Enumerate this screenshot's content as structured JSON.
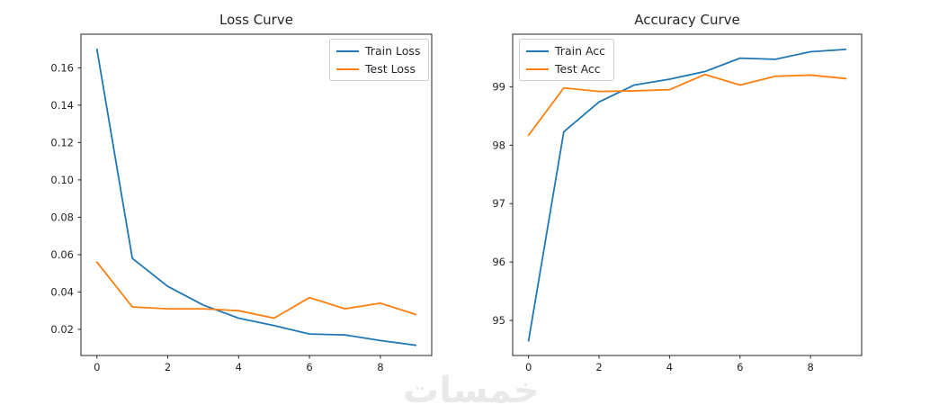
{
  "figure": {
    "background": "#ffffff"
  },
  "watermark": {
    "text": "خمسات",
    "color": "#e9e9e9"
  },
  "chart_data": [
    {
      "type": "line",
      "title": "Loss Curve",
      "x": [
        0,
        1,
        2,
        3,
        4,
        5,
        6,
        7,
        8,
        9
      ],
      "series": [
        {
          "name": "Train Loss",
          "color": "#1f77b4",
          "values": [
            0.17,
            0.058,
            0.043,
            0.033,
            0.026,
            0.022,
            0.0175,
            0.017,
            0.014,
            0.0115
          ]
        },
        {
          "name": "Test Loss",
          "color": "#ff7f0e",
          "values": [
            0.056,
            0.032,
            0.031,
            0.031,
            0.03,
            0.026,
            0.037,
            0.031,
            0.034,
            0.028
          ]
        }
      ],
      "xlabel": "",
      "ylabel": "",
      "xlim": [
        -0.45,
        9.45
      ],
      "ylim": [
        0.006,
        0.178
      ],
      "xticks": [
        0,
        2,
        4,
        6,
        8
      ],
      "xtick_labels": [
        "0",
        "2",
        "4",
        "6",
        "8"
      ],
      "yticks": [
        0.02,
        0.04,
        0.06,
        0.08,
        0.1,
        0.12,
        0.14,
        0.16
      ],
      "ytick_labels": [
        "0.02",
        "0.04",
        "0.06",
        "0.08",
        "0.10",
        "0.12",
        "0.14",
        "0.16"
      ],
      "grid": false,
      "legend_position": "upper-right"
    },
    {
      "type": "line",
      "title": "Accuracy Curve",
      "x": [
        0,
        1,
        2,
        3,
        4,
        5,
        6,
        7,
        8,
        9
      ],
      "series": [
        {
          "name": "Train Acc",
          "color": "#1f77b4",
          "values": [
            94.65,
            98.23,
            98.74,
            99.03,
            99.13,
            99.26,
            99.49,
            99.47,
            99.6,
            99.64
          ]
        },
        {
          "name": "Test Acc",
          "color": "#ff7f0e",
          "values": [
            98.17,
            98.98,
            98.92,
            98.93,
            98.95,
            99.21,
            99.03,
            99.18,
            99.2,
            99.14
          ]
        }
      ],
      "xlabel": "",
      "ylabel": "",
      "xlim": [
        -0.45,
        9.45
      ],
      "ylim": [
        94.4,
        99.9
      ],
      "xticks": [
        0,
        2,
        4,
        6,
        8
      ],
      "xtick_labels": [
        "0",
        "2",
        "4",
        "6",
        "8"
      ],
      "yticks": [
        95,
        96,
        97,
        98,
        99
      ],
      "ytick_labels": [
        "95",
        "96",
        "97",
        "98",
        "99"
      ],
      "grid": false,
      "legend_position": "upper-left"
    }
  ]
}
